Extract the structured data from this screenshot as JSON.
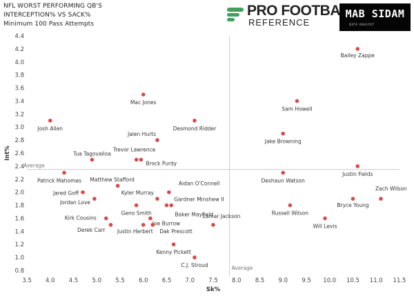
{
  "header": {
    "title_line1": "NFL WORST PERFORMING QB'S",
    "title_line2": "INTERCEPTION% VS SACK%",
    "subtitle": "Minimum 100 Pass Attempts"
  },
  "logos": {
    "pfr_line1": "PRO FOOTBALL",
    "pfr_line2": "REFERENCE",
    "mab_name": "MAB SIDAM",
    "mab_sub": "DATA ANALYST"
  },
  "colors": {
    "point": "#d94b4b",
    "reference_line": "#cccccc",
    "accent_green": "#3fa05a"
  },
  "chart_data": {
    "type": "scatter",
    "title": "NFL WORST PERFORMING QB'S INTERCEPTION% VS SACK%",
    "subtitle": "Minimum 100 Pass Attempts",
    "xlabel": "Sk%",
    "ylabel": "Int%",
    "xlim": [
      3.5,
      11.5
    ],
    "ylim": [
      0.8,
      4.4
    ],
    "xticks": [
      "3.5",
      "4.0",
      "4.5",
      "5.0",
      "5.5",
      "6.0",
      "6.5",
      "7.0",
      "7.5",
      "8.0",
      "8.5",
      "9.0",
      "9.5",
      "10.0",
      "10.5",
      "11.0",
      "11.5"
    ],
    "yticks": [
      "0.8",
      "1.0",
      "1.2",
      "1.4",
      "1.6",
      "1.8",
      "2.0",
      "2.2",
      "2.4",
      "2.6",
      "2.8",
      "3.0",
      "3.2",
      "3.4",
      "3.6",
      "3.8",
      "4.0",
      "4.2",
      "4.4"
    ],
    "grid": false,
    "reference_lines": [
      {
        "axis": "y",
        "value": 2.35,
        "label": "Average"
      },
      {
        "axis": "x",
        "value": 7.85,
        "label": "Average"
      }
    ],
    "points": [
      {
        "name": "Bailey Zappe",
        "x": 10.6,
        "y": 4.2
      },
      {
        "name": "Mac Jones",
        "x": 6.0,
        "y": 3.5
      },
      {
        "name": "Sam Howell",
        "x": 9.3,
        "y": 3.4
      },
      {
        "name": "Josh Allen",
        "x": 4.0,
        "y": 3.1
      },
      {
        "name": "Desmond Ridder",
        "x": 7.1,
        "y": 3.1
      },
      {
        "name": "Jake Browning",
        "x": 9.0,
        "y": 2.9
      },
      {
        "name": "Jalen Hurts",
        "x": 6.3,
        "y": 2.8
      },
      {
        "name": "Tua Tagovailoa",
        "x": 4.9,
        "y": 2.5
      },
      {
        "name": "Trevor Lawrence",
        "x": 5.85,
        "y": 2.5
      },
      {
        "name": "Brock Purdy",
        "x": 5.95,
        "y": 2.5
      },
      {
        "name": "Justin Fields",
        "x": 10.6,
        "y": 2.4
      },
      {
        "name": "Patrick Mahomes",
        "x": 4.3,
        "y": 2.3
      },
      {
        "name": "Deshaun Watson",
        "x": 9.0,
        "y": 2.3
      },
      {
        "name": "Matthew Stafford",
        "x": 5.45,
        "y": 2.1
      },
      {
        "name": "Aidan O'Connell",
        "x": 6.55,
        "y": 2.0
      },
      {
        "name": "Kyler Murray",
        "x": 6.3,
        "y": 1.9
      },
      {
        "name": "Jared Goff",
        "x": 4.7,
        "y": 2.0
      },
      {
        "name": "Jordan Love",
        "x": 4.95,
        "y": 1.9
      },
      {
        "name": "Zach Wilson",
        "x": 11.1,
        "y": 1.9
      },
      {
        "name": "Bryce Young",
        "x": 10.5,
        "y": 1.9
      },
      {
        "name": "Gardner Minshew II",
        "x": 6.6,
        "y": 1.8
      },
      {
        "name": "Geno Smith",
        "x": 5.85,
        "y": 1.8
      },
      {
        "name": "Russell Wilson",
        "x": 9.15,
        "y": 1.8
      },
      {
        "name": "Baker Mayfield",
        "x": 6.5,
        "y": 1.8
      },
      {
        "name": "Kirk Cousins",
        "x": 5.2,
        "y": 1.6
      },
      {
        "name": "Joe Burrow",
        "x": 6.15,
        "y": 1.6
      },
      {
        "name": "Will Levis",
        "x": 9.9,
        "y": 1.6
      },
      {
        "name": "Derek Carr",
        "x": 5.3,
        "y": 1.5
      },
      {
        "name": "Justin Herbert",
        "x": 6.0,
        "y": 1.5
      },
      {
        "name": "Dak Prescott",
        "x": 6.2,
        "y": 1.5
      },
      {
        "name": "Lamar Jackson",
        "x": 7.5,
        "y": 1.5
      },
      {
        "name": "Kenny Pickett",
        "x": 6.65,
        "y": 1.2
      },
      {
        "name": "C.J. Stroud",
        "x": 7.1,
        "y": 1.0
      }
    ]
  }
}
